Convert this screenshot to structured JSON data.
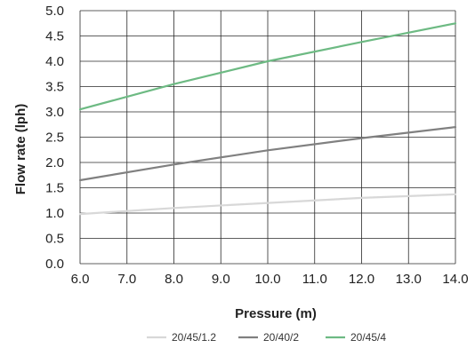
{
  "chart_data": {
    "type": "line",
    "title": "",
    "xlabel": "Pressure (m)",
    "ylabel": "Flow rate (lph)",
    "xlim": [
      6.0,
      14.0
    ],
    "ylim": [
      0.0,
      5.0
    ],
    "xticks": [
      "6.0",
      "7.0",
      "8.0",
      "9.0",
      "10.0",
      "11.0",
      "12.0",
      "13.0",
      "14.0"
    ],
    "yticks": [
      "0.0",
      "0.5",
      "1.0",
      "1.5",
      "2.0",
      "2.5",
      "3.0",
      "3.5",
      "4.0",
      "4.5",
      "5.0"
    ],
    "grid": true,
    "legend_position": "bottom",
    "series": [
      {
        "name": "20/45/1.2",
        "color": "#d8d8d8",
        "x": [
          6.0,
          8.0,
          10.0,
          12.0,
          14.0
        ],
        "y": [
          0.98,
          1.1,
          1.2,
          1.3,
          1.37
        ]
      },
      {
        "name": "20/40/2",
        "color": "#808080",
        "x": [
          6.0,
          8.0,
          10.0,
          12.0,
          14.0
        ],
        "y": [
          1.65,
          1.96,
          2.24,
          2.48,
          2.7
        ]
      },
      {
        "name": "20/45/4",
        "color": "#6dba83",
        "x": [
          6.0,
          8.0,
          10.0,
          12.0,
          14.0
        ],
        "y": [
          3.05,
          3.55,
          4.0,
          4.38,
          4.75
        ]
      }
    ]
  }
}
